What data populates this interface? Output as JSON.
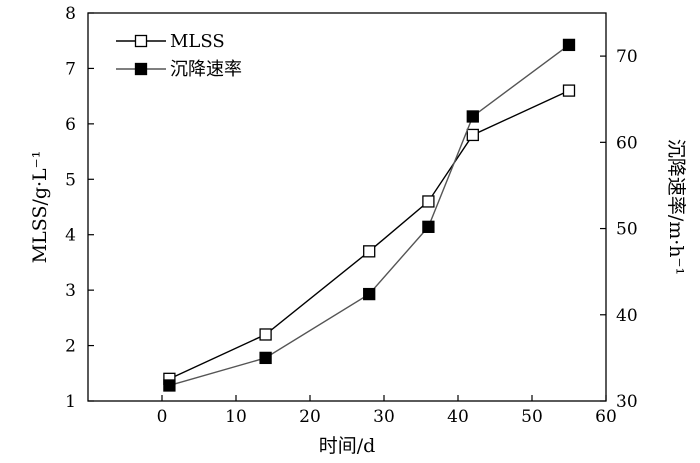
{
  "chart_data": {
    "type": "line",
    "xlabel": "时间/d",
    "ylabel_left": "MLSS/g·L⁻¹",
    "ylabel_right": "沉降速率/m·h⁻¹",
    "xlim": [
      -10,
      60
    ],
    "xticks": [
      0,
      10,
      20,
      30,
      40,
      50,
      60
    ],
    "ylim_left": [
      1,
      8
    ],
    "yticks_left": [
      1,
      2,
      3,
      4,
      5,
      6,
      7,
      8
    ],
    "ylim_right": [
      30,
      75
    ],
    "yticks_right": [
      30,
      40,
      50,
      60,
      70
    ],
    "legend_position": "top-left",
    "series": [
      {
        "name": "MLSS",
        "axis": "left",
        "marker": "open-square",
        "line_color": "#000000",
        "x": [
          1,
          14,
          28,
          36,
          42,
          55
        ],
        "y": [
          1.4,
          2.2,
          3.7,
          4.6,
          5.8,
          6.6
        ]
      },
      {
        "name": "沉降速率",
        "axis": "right",
        "marker": "filled-square",
        "line_color": "#555555",
        "x": [
          1,
          14,
          28,
          36,
          42,
          55
        ],
        "y": [
          31.8,
          35.0,
          42.4,
          50.2,
          63.0,
          71.3
        ]
      }
    ]
  }
}
